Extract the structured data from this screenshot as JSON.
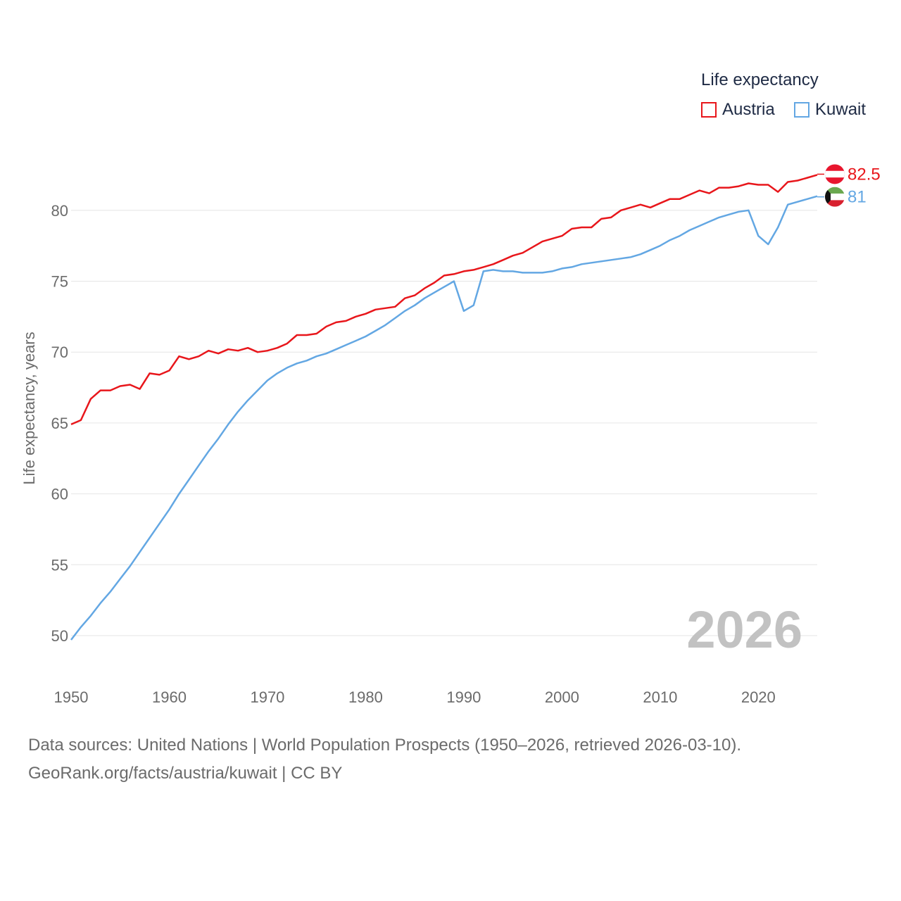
{
  "legend": {
    "title": "Life expectancy",
    "items": [
      {
        "label": "Austria",
        "color": "#e8161b"
      },
      {
        "label": "Kuwait",
        "color": "#63a7e3"
      }
    ]
  },
  "end_labels": {
    "austria": "82.5",
    "kuwait": "81"
  },
  "year_watermark": "2026",
  "footer": {
    "line1": "Data sources: United Nations | World Population Prospects (1950–2026, retrieved 2026-03-10).",
    "line2": "GeoRank.org/facts/austria/kuwait | CC BY"
  },
  "chart_data": {
    "type": "line",
    "title": "Life expectancy",
    "xlabel": "",
    "ylabel": "Life expectancy, years",
    "xlim": [
      1950,
      2026
    ],
    "ylim": [
      49,
      83.5
    ],
    "yticks": [
      50,
      55,
      60,
      65,
      70,
      75,
      80
    ],
    "xticks": [
      1950,
      1960,
      1970,
      1980,
      1990,
      2000,
      2010,
      2020
    ],
    "grid": true,
    "legend_position": "top-right",
    "x": [
      1950,
      1951,
      1952,
      1953,
      1954,
      1955,
      1956,
      1957,
      1958,
      1959,
      1960,
      1961,
      1962,
      1963,
      1964,
      1965,
      1966,
      1967,
      1968,
      1969,
      1970,
      1971,
      1972,
      1973,
      1974,
      1975,
      1976,
      1977,
      1978,
      1979,
      1980,
      1981,
      1982,
      1983,
      1984,
      1985,
      1986,
      1987,
      1988,
      1989,
      1990,
      1991,
      1992,
      1993,
      1994,
      1995,
      1996,
      1997,
      1998,
      1999,
      2000,
      2001,
      2002,
      2003,
      2004,
      2005,
      2006,
      2007,
      2008,
      2009,
      2010,
      2011,
      2012,
      2013,
      2014,
      2015,
      2016,
      2017,
      2018,
      2019,
      2020,
      2021,
      2022,
      2023,
      2024,
      2025,
      2026
    ],
    "series": [
      {
        "name": "Austria",
        "color": "#e8161b",
        "values": [
          64.9,
          65.2,
          66.7,
          67.3,
          67.3,
          67.6,
          67.7,
          67.4,
          68.5,
          68.4,
          68.7,
          69.7,
          69.5,
          69.7,
          70.1,
          69.9,
          70.2,
          70.1,
          70.3,
          70.0,
          70.1,
          70.3,
          70.6,
          71.2,
          71.2,
          71.3,
          71.8,
          72.1,
          72.2,
          72.5,
          72.7,
          73.0,
          73.1,
          73.2,
          73.8,
          74.0,
          74.5,
          74.9,
          75.4,
          75.5,
          75.7,
          75.8,
          76.0,
          76.2,
          76.5,
          76.8,
          77.0,
          77.4,
          77.8,
          78.0,
          78.2,
          78.7,
          78.8,
          78.8,
          79.4,
          79.5,
          80.0,
          80.2,
          80.4,
          80.2,
          80.5,
          80.8,
          80.8,
          81.1,
          81.4,
          81.2,
          81.6,
          81.6,
          81.7,
          81.9,
          81.8,
          81.8,
          81.3,
          82.0,
          82.1,
          82.3,
          82.5
        ]
      },
      {
        "name": "Kuwait",
        "color": "#63a7e3",
        "values": [
          49.7,
          50.6,
          51.4,
          52.3,
          53.1,
          54.0,
          54.9,
          55.9,
          56.9,
          57.9,
          58.9,
          60.0,
          61.0,
          62.0,
          63.0,
          63.9,
          64.9,
          65.8,
          66.6,
          67.3,
          68.0,
          68.5,
          68.9,
          69.2,
          69.4,
          69.7,
          69.9,
          70.2,
          70.5,
          70.8,
          71.1,
          71.5,
          71.9,
          72.4,
          72.9,
          73.3,
          73.8,
          74.2,
          74.6,
          75.0,
          72.9,
          73.3,
          75.7,
          75.8,
          75.7,
          75.7,
          75.6,
          75.6,
          75.6,
          75.7,
          75.9,
          76.0,
          76.2,
          76.3,
          76.4,
          76.5,
          76.6,
          76.7,
          76.9,
          77.2,
          77.5,
          77.9,
          78.2,
          78.6,
          78.9,
          79.2,
          79.5,
          79.7,
          79.9,
          80.0,
          78.2,
          77.6,
          78.8,
          80.4,
          80.6,
          80.8,
          81.0
        ]
      }
    ]
  }
}
